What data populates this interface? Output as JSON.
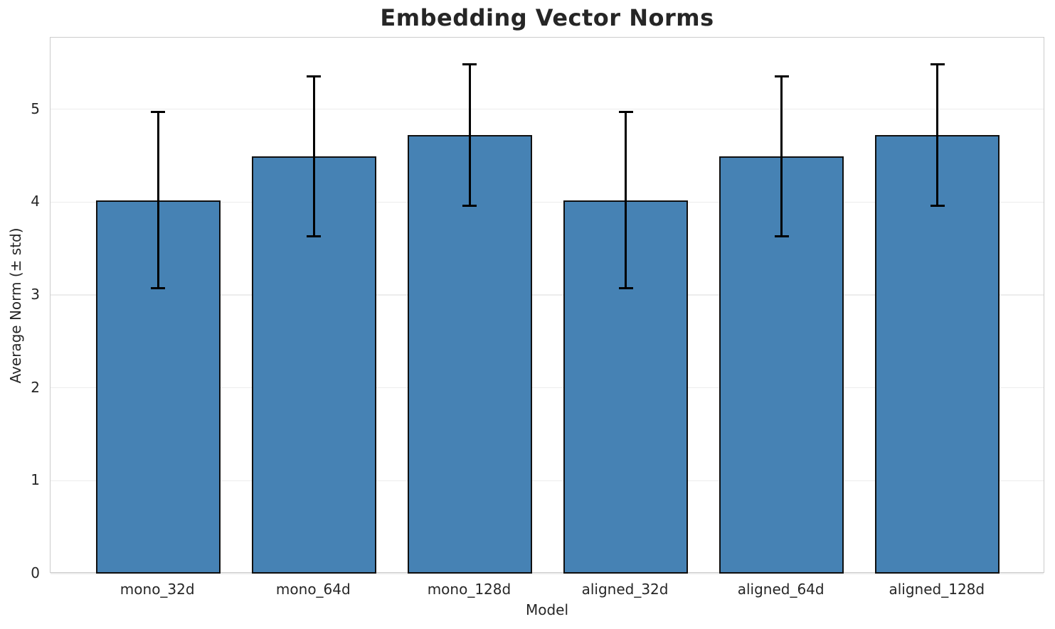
{
  "chart_data": {
    "type": "bar",
    "title": "Embedding Vector Norms",
    "xlabel": "Model",
    "ylabel": "Average Norm (± std)",
    "categories": [
      "mono_32d",
      "mono_64d",
      "mono_128d",
      "aligned_32d",
      "aligned_64d",
      "aligned_128d"
    ],
    "values": [
      4.02,
      4.49,
      4.72,
      4.02,
      4.49,
      4.72
    ],
    "errors": [
      0.95,
      0.86,
      0.76,
      0.95,
      0.86,
      0.76
    ],
    "yticks": [
      0,
      1,
      2,
      3,
      4,
      5
    ],
    "ylim": [
      0,
      5.77
    ],
    "xlim": [
      -0.69,
      5.69
    ],
    "bar_width_fraction": 0.8,
    "grid": true,
    "legend": "none",
    "colors": {
      "bar_fill": "#4682B4",
      "bar_edge": "#101010",
      "error": "#000000",
      "grid": "#ececec",
      "spine": "#cccccc",
      "text": "#262626",
      "background": "#ffffff"
    }
  }
}
